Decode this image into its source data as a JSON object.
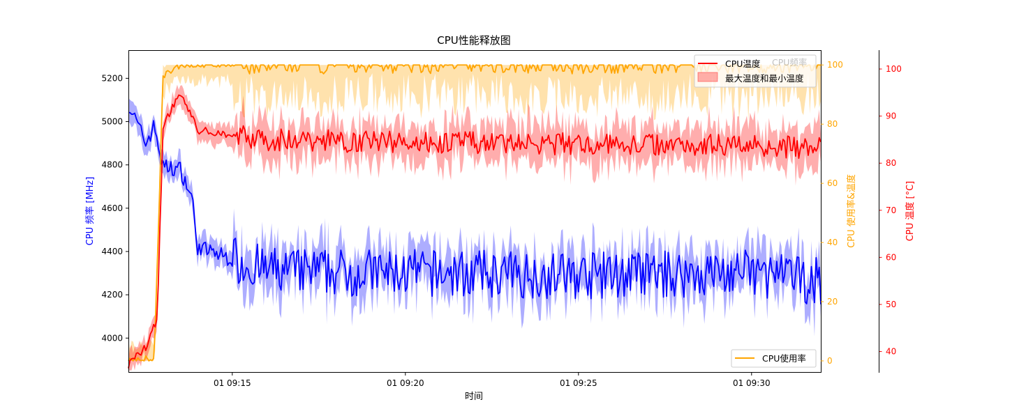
{
  "chart_data": {
    "type": "line",
    "title": "CPU性能释放图",
    "xlabel": "时间",
    "x_ticks": [
      "01 09:15",
      "01 09:20",
      "01 09:25",
      "01 09:30"
    ],
    "x_range": [
      "09:12",
      "09:32"
    ],
    "axes": {
      "freq": {
        "label": "CPU 频率 [MHz]",
        "color": "#0000ff",
        "ylim": [
          3840,
          5330
        ],
        "ticks": [
          4000,
          4200,
          4400,
          4600,
          4800,
          5000,
          5200
        ]
      },
      "usage": {
        "label": "CPU 使用率&温度",
        "color": "#ffa500",
        "ylim": [
          -4,
          105
        ],
        "ticks": [
          0,
          20,
          40,
          60,
          80,
          100
        ]
      },
      "temp": {
        "label": "CPU 温度 [°C]",
        "color": "#ff0000",
        "ylim": [
          35.5,
          104
        ],
        "ticks": [
          40,
          50,
          60,
          70,
          80,
          90,
          100
        ]
      }
    },
    "series": [
      {
        "name": "CPU频率",
        "axis": "freq",
        "color": "#0000ff",
        "times": [
          "09:12",
          "09:12:30",
          "09:12:45",
          "09:13",
          "09:13:30",
          "09:13:50",
          "09:14",
          "09:16",
          "09:20",
          "09:25",
          "09:30",
          "09:32"
        ],
        "values": [
          5080,
          4900,
          4980,
          4790,
          4780,
          4650,
          4420,
          4310,
          4300,
          4290,
          4300,
          4260
        ],
        "range": [
          3900,
          5290
        ]
      },
      {
        "name": "CPU温度",
        "axis": "temp",
        "color": "#ff0000",
        "times": [
          "09:12",
          "09:12:30",
          "09:12:50",
          "09:13",
          "09:13:30",
          "09:14",
          "09:16",
          "09:20",
          "09:25",
          "09:30",
          "09:32"
        ],
        "values": [
          37,
          41,
          47,
          88,
          95,
          87,
          85,
          84.5,
          84,
          84,
          83
        ],
        "range": [
          36,
          98
        ]
      },
      {
        "name": "CPU使用率",
        "axis": "usage",
        "color": "#ffa500",
        "times": [
          "09:12",
          "09:12:45",
          "09:13",
          "09:13:30",
          "09:20",
          "09:30",
          "09:32"
        ],
        "values": [
          0,
          1,
          96,
          100,
          100,
          100,
          100
        ],
        "range": [
          0,
          100
        ]
      }
    ],
    "legend_top": [
      "CPU温度",
      "最大温度和最小温度",
      "CPU频率"
    ],
    "legend_bottom": [
      "CPU使用率"
    ],
    "colors": {
      "freq": "#0000ff",
      "usage": "#ffa500",
      "temp": "#ff0000"
    }
  }
}
